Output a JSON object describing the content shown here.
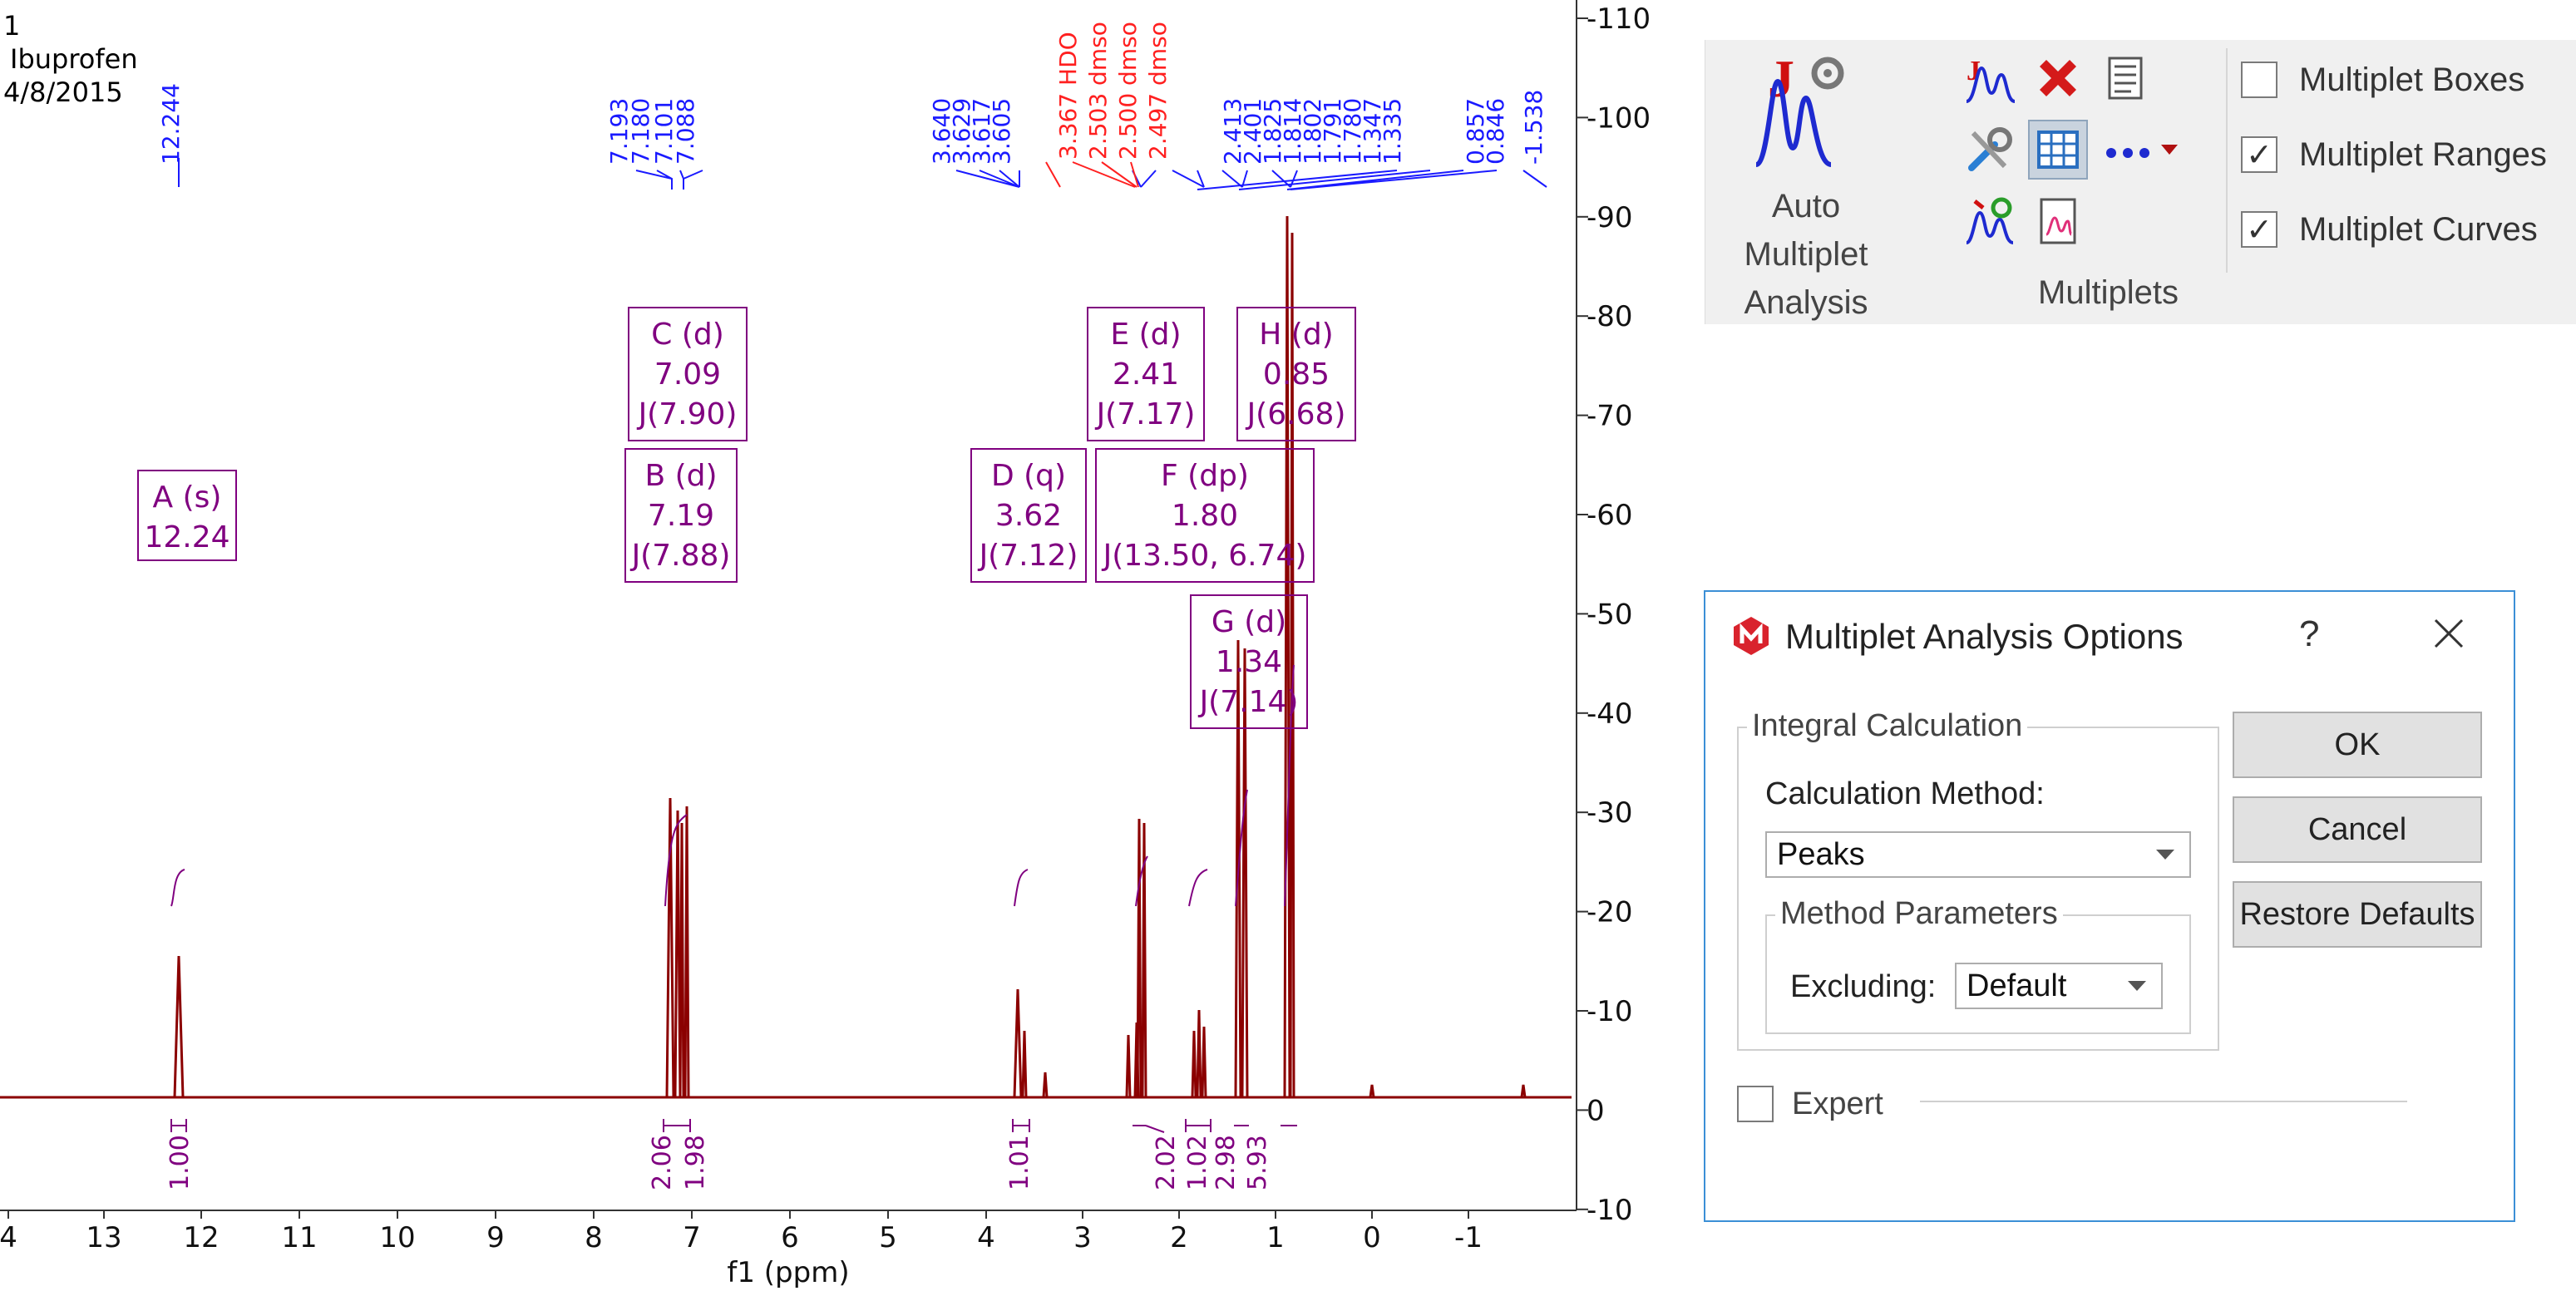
{
  "spectrum": {
    "header": {
      "line1": "1",
      "line2": "Ibuprofen",
      "line3": "4/8/2015"
    },
    "x_axis": {
      "label": "f1 (ppm)",
      "ticks": [
        "4",
        "13",
        "12",
        "11",
        "10",
        "9",
        "8",
        "7",
        "6",
        "5",
        "4",
        "3",
        "2",
        "1",
        "0",
        "-1"
      ]
    },
    "y_axis": {
      "ticks": [
        "110",
        "100",
        "90",
        "80",
        "70",
        "60",
        "50",
        "40",
        "30",
        "20",
        "10",
        "0",
        "-10"
      ]
    },
    "peak_labels_blue": [
      "12.244",
      "7.193",
      "7.180",
      "7.101",
      "7.088",
      "3.640",
      "3.629",
      "3.617",
      "3.605",
      "2.413",
      "2.401",
      "1.825",
      "1.814",
      "1.802",
      "1.791",
      "1.780",
      "1.347",
      "1.335",
      "0.857",
      "0.846",
      "-1.538"
    ],
    "peak_labels_red": [
      "3.367 HDO",
      "2.503 dmso",
      "2.500 dmso",
      "2.497 dmso"
    ],
    "multiplets": [
      {
        "name": "A (s)",
        "shift": "12.24",
        "j": ""
      },
      {
        "name": "B (d)",
        "shift": "7.19",
        "j": "J(7.88)"
      },
      {
        "name": "C (d)",
        "shift": "7.09",
        "j": "J(7.90)"
      },
      {
        "name": "D (q)",
        "shift": "3.62",
        "j": "J(7.12)"
      },
      {
        "name": "E (d)",
        "shift": "2.41",
        "j": "J(7.17)"
      },
      {
        "name": "F (dp)",
        "shift": "1.80",
        "j": "J(13.50, 6.74)"
      },
      {
        "name": "G (d)",
        "shift": "1.34",
        "j": "J(7.14)"
      },
      {
        "name": "H (d)",
        "shift": "0.85",
        "j": "J(6.68)"
      }
    ],
    "integrals": [
      "1.00",
      "2.06",
      "1.98",
      "1.01",
      "2.02",
      "1.02",
      "2.98",
      "5.93"
    ],
    "colors": {
      "spectrum": "#8b0000",
      "peaks": "#1a1aff",
      "solvent": "#ff2020",
      "annotation": "#800080"
    }
  },
  "ribbon": {
    "big_button": {
      "line1": "Auto Multiplet",
      "line2": "Analysis"
    },
    "icons": [
      "j-multiplet-icon",
      "delete-multiplets-icon",
      "multiplet-report-icon",
      "tools-icon",
      "table-icon",
      "more-icon",
      "refresh-multiplets-icon",
      "multiplet-report-spectrum-icon"
    ],
    "checkboxes": [
      {
        "label": "Multiplet Boxes",
        "checked": false,
        "mark": ""
      },
      {
        "label": "Multiplet Ranges",
        "checked": true,
        "mark": "✓"
      },
      {
        "label": "Multiplet Curves",
        "checked": true,
        "mark": "✓"
      }
    ],
    "group_label": "Multiplets"
  },
  "dialog": {
    "title": "Multiplet Analysis Options",
    "help": "?",
    "integral_group": "Integral Calculation",
    "calc_method_label": "Calculation Method:",
    "calc_method_value": "Peaks",
    "method_params_group": "Method Parameters",
    "excluding_label": "Excluding:",
    "excluding_value": "Default",
    "expert_label": "Expert",
    "buttons": {
      "ok": "OK",
      "cancel": "Cancel",
      "restore": "Restore Defaults"
    }
  }
}
